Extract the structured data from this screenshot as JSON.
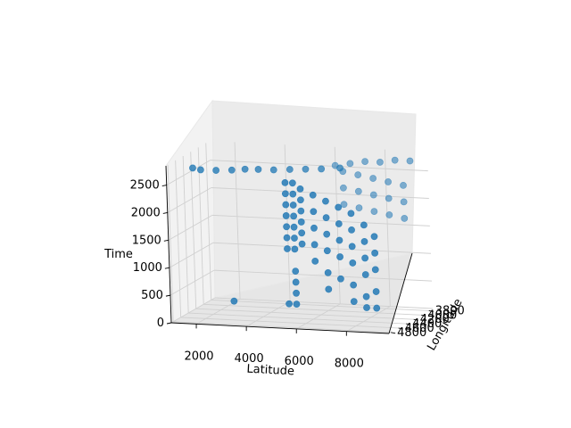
{
  "chart_data": {
    "type": "scatter",
    "title": "",
    "xlabel": "Latitude",
    "ylabel": "Longitude",
    "zlabel": "Time",
    "xlim": [
      1000,
      9700
    ],
    "ylim": [
      3700,
      4850
    ],
    "zlim": [
      0,
      2850
    ],
    "xticks": [
      2000,
      4000,
      6000,
      8000
    ],
    "yticks": [
      3800,
      4000,
      4200,
      4400,
      4600,
      4800
    ],
    "zticks": [
      0,
      500,
      1000,
      1500,
      2000,
      2500
    ],
    "grid": true,
    "view": "3d",
    "marker_color": "#1f77b4",
    "series": [
      {
        "points": [
          [
            1400,
            4420,
            2650
          ],
          [
            1700,
            4410,
            2620
          ],
          [
            2300,
            4400,
            2620
          ],
          [
            2900,
            4380,
            2630
          ],
          [
            3400,
            4360,
            2650
          ],
          [
            3900,
            4340,
            2650
          ],
          [
            4500,
            4330,
            2650
          ],
          [
            5100,
            4300,
            2660
          ],
          [
            5700,
            4280,
            2670
          ],
          [
            6300,
            4260,
            2680
          ],
          [
            7000,
            4230,
            2700
          ],
          [
            5200,
            4500,
            2500
          ],
          [
            5200,
            4500,
            2300
          ],
          [
            5200,
            4500,
            2100
          ],
          [
            5200,
            4500,
            1900
          ],
          [
            5200,
            4500,
            1700
          ],
          [
            5200,
            4500,
            1500
          ],
          [
            5200,
            4500,
            1300
          ],
          [
            5500,
            4500,
            2500
          ],
          [
            5500,
            4500,
            2300
          ],
          [
            5500,
            4500,
            2100
          ],
          [
            5500,
            4500,
            1900
          ],
          [
            5500,
            4500,
            1700
          ],
          [
            5500,
            4500,
            1500
          ],
          [
            5500,
            4500,
            1300
          ],
          [
            5800,
            4500,
            2400
          ],
          [
            5800,
            4500,
            2200
          ],
          [
            5800,
            4500,
            2000
          ],
          [
            5800,
            4500,
            1800
          ],
          [
            5800,
            4500,
            1600
          ],
          [
            5800,
            4500,
            1400
          ],
          [
            5500,
            4500,
            900
          ],
          [
            5500,
            4500,
            700
          ],
          [
            5500,
            4500,
            500
          ],
          [
            5500,
            4500,
            300
          ],
          [
            5200,
            4500,
            300
          ],
          [
            6300,
            4500,
            2300
          ],
          [
            6300,
            4500,
            2000
          ],
          [
            6300,
            4500,
            1700
          ],
          [
            6300,
            4500,
            1400
          ],
          [
            6300,
            4500,
            1100
          ],
          [
            6800,
            4500,
            2200
          ],
          [
            6800,
            4500,
            1900
          ],
          [
            6800,
            4500,
            1600
          ],
          [
            6800,
            4500,
            1300
          ],
          [
            6800,
            4500,
            900
          ],
          [
            6800,
            4500,
            600
          ],
          [
            7300,
            4500,
            2100
          ],
          [
            7300,
            4500,
            1800
          ],
          [
            7300,
            4500,
            1500
          ],
          [
            7300,
            4500,
            1200
          ],
          [
            7300,
            4500,
            800
          ],
          [
            7800,
            4500,
            2000
          ],
          [
            7800,
            4500,
            1700
          ],
          [
            7800,
            4500,
            1400
          ],
          [
            7800,
            4500,
            1100
          ],
          [
            7800,
            4500,
            700
          ],
          [
            7800,
            4500,
            400
          ],
          [
            8300,
            4500,
            1800
          ],
          [
            8300,
            4500,
            1500
          ],
          [
            8300,
            4500,
            1200
          ],
          [
            8300,
            4500,
            900
          ],
          [
            8300,
            4500,
            500
          ],
          [
            8300,
            4500,
            300
          ],
          [
            8700,
            4500,
            1600
          ],
          [
            8700,
            4500,
            1300
          ],
          [
            8700,
            4500,
            1000
          ],
          [
            8700,
            4500,
            600
          ],
          [
            8700,
            4500,
            300
          ],
          [
            6600,
            3900,
            2500
          ],
          [
            7200,
            3900,
            2450
          ],
          [
            7800,
            3900,
            2400
          ],
          [
            8400,
            3900,
            2350
          ],
          [
            9000,
            3900,
            2300
          ],
          [
            6600,
            3900,
            2200
          ],
          [
            7200,
            3900,
            2150
          ],
          [
            7800,
            3900,
            2100
          ],
          [
            8400,
            3900,
            2050
          ],
          [
            9000,
            3900,
            2000
          ],
          [
            6600,
            3900,
            1900
          ],
          [
            7200,
            3900,
            1850
          ],
          [
            7800,
            3900,
            1800
          ],
          [
            8400,
            3900,
            1750
          ],
          [
            9000,
            3900,
            1700
          ],
          [
            6300,
            3900,
            2600
          ],
          [
            6900,
            3900,
            2650
          ],
          [
            7500,
            3900,
            2700
          ],
          [
            8100,
            3900,
            2700
          ],
          [
            8700,
            3900,
            2750
          ],
          [
            9300,
            3900,
            2750
          ],
          [
            3000,
            4500,
            300
          ]
        ]
      }
    ]
  }
}
